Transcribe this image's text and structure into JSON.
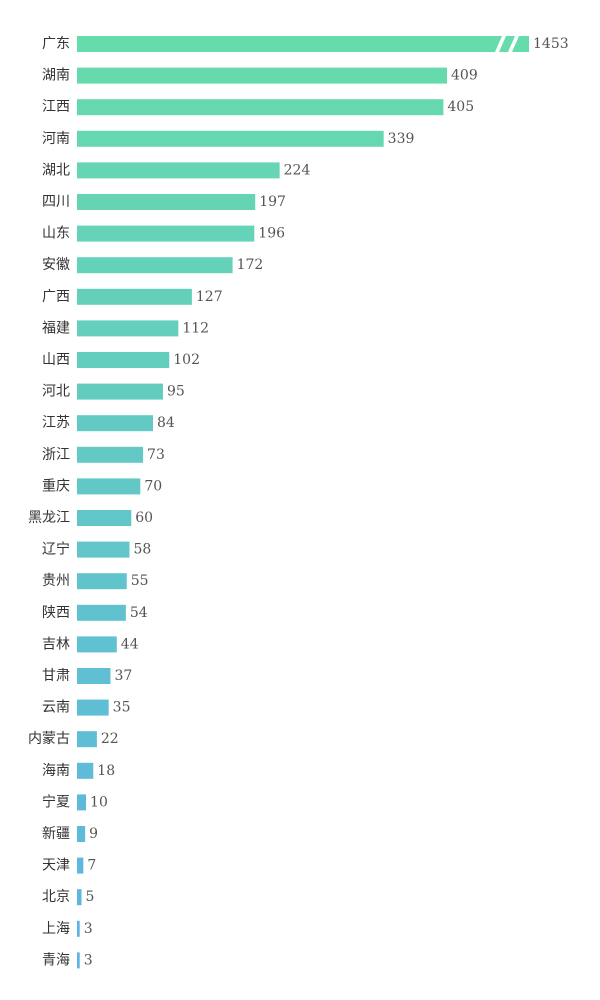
{
  "chart_data": {
    "type": "bar",
    "orientation": "horizontal",
    "title": "",
    "xlabel": "",
    "ylabel": "",
    "grid": false,
    "legend": "none",
    "axis_break": {
      "category": "广东",
      "note": "bar truncated with diagonal break marks"
    },
    "display_max": 409,
    "color_start": "#66dbab",
    "color_end": "#5db3e3",
    "categories": [
      "广东",
      "湖南",
      "江西",
      "河南",
      "湖北",
      "四川",
      "山东",
      "安徽",
      "广西",
      "福建",
      "山西",
      "河北",
      "江苏",
      "浙江",
      "重庆",
      "黑龙江",
      "辽宁",
      "贵州",
      "陕西",
      "吉林",
      "甘肃",
      "云南",
      "内蒙古",
      "海南",
      "宁夏",
      "新疆",
      "天津",
      "北京",
      "上海",
      "青海"
    ],
    "values": [
      1453,
      409,
      405,
      339,
      224,
      197,
      196,
      172,
      127,
      112,
      102,
      95,
      84,
      73,
      70,
      60,
      58,
      55,
      54,
      44,
      37,
      35,
      22,
      18,
      10,
      9,
      7,
      5,
      3,
      3
    ]
  }
}
